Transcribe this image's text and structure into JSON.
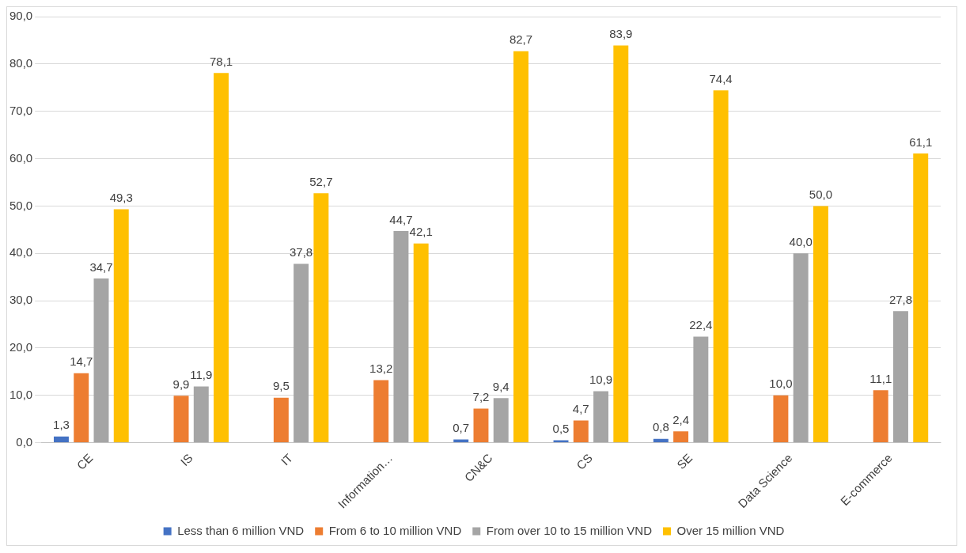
{
  "chart_data": {
    "type": "bar",
    "categories": [
      "CE",
      "IS",
      "IT",
      "Information…",
      "CN&C",
      "CS",
      "SE",
      "Data Science",
      "E-commerce"
    ],
    "series": [
      {
        "name": "Less than 6 million VND",
        "color": "#4472c4",
        "values": [
          1.3,
          null,
          null,
          null,
          0.7,
          0.5,
          0.8,
          null,
          null
        ],
        "value_labels": [
          "1,3",
          null,
          null,
          null,
          "0,7",
          "0,5",
          "0,8",
          null,
          null
        ]
      },
      {
        "name": "From 6 to 10 million VND",
        "color": "#ed7d31",
        "values": [
          14.7,
          9.9,
          9.5,
          13.2,
          7.2,
          4.7,
          2.4,
          10.0,
          11.1
        ],
        "value_labels": [
          "14,7",
          "9,9",
          "9,5",
          "13,2",
          "7,2",
          "4,7",
          "2,4",
          "10,0",
          "11,1"
        ]
      },
      {
        "name": "From over 10 to 15 million VND",
        "color": "#a5a5a5",
        "values": [
          34.7,
          11.9,
          37.8,
          44.7,
          9.4,
          10.9,
          22.4,
          40.0,
          27.8
        ],
        "value_labels": [
          "34,7",
          "11,9",
          "37,8",
          "44,7",
          "9,4",
          "10,9",
          "22,4",
          "40,0",
          "27,8"
        ]
      },
      {
        "name": "Over 15 million VND",
        "color": "#ffc000",
        "values": [
          49.3,
          78.1,
          52.7,
          42.1,
          82.7,
          83.9,
          74.4,
          50.0,
          61.1
        ],
        "value_labels": [
          "49,3",
          "78,1",
          "52,7",
          "42,1",
          "82,7",
          "83,9",
          "74,4",
          "50,0",
          "61,1"
        ]
      }
    ],
    "ylim": [
      0,
      90
    ],
    "yticks": [
      {
        "value": 0,
        "label": "0,0"
      },
      {
        "value": 10,
        "label": "10,0"
      },
      {
        "value": 20,
        "label": "20,0"
      },
      {
        "value": 30,
        "label": "30,0"
      },
      {
        "value": 40,
        "label": "40,0"
      },
      {
        "value": 50,
        "label": "50,0"
      },
      {
        "value": 60,
        "label": "60,0"
      },
      {
        "value": 70,
        "label": "70,0"
      },
      {
        "value": 80,
        "label": "80,0"
      },
      {
        "value": 90,
        "label": "90,0"
      }
    ],
    "grid": "y",
    "legend": "bottom"
  }
}
